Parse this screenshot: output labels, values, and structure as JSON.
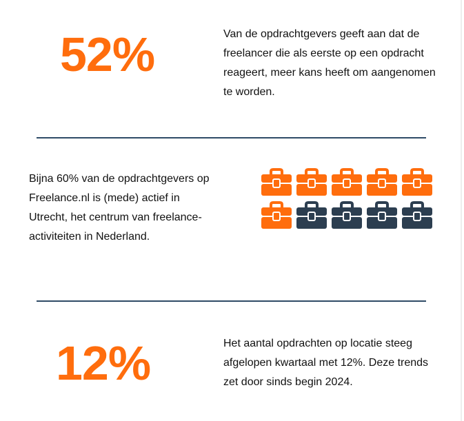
{
  "colors": {
    "accent": "#ff6d0d",
    "dark": "#2c3e50",
    "divider": "#2e4a66",
    "text": "#111111"
  },
  "stat1": {
    "value": "52%",
    "description": "Van de opdrachtgevers geeft aan dat de freelancer die als eerste op een opdracht reageert, meer kans heeft om aangenomen te worden."
  },
  "stat2": {
    "description": "Bijna 60% van de opdrachtgevers op Freelance.nl is (mede) actief in Utrecht, het centrum van freelance-activiteiten in Nederland.",
    "icon": "briefcase-icon",
    "highlighted_count": 6,
    "total_count": 10
  },
  "stat3": {
    "value": "12%",
    "description": "Het aantal opdrachten op locatie steeg afgelopen kwartaal met 12%. Deze trends zet door sinds begin 2024."
  }
}
